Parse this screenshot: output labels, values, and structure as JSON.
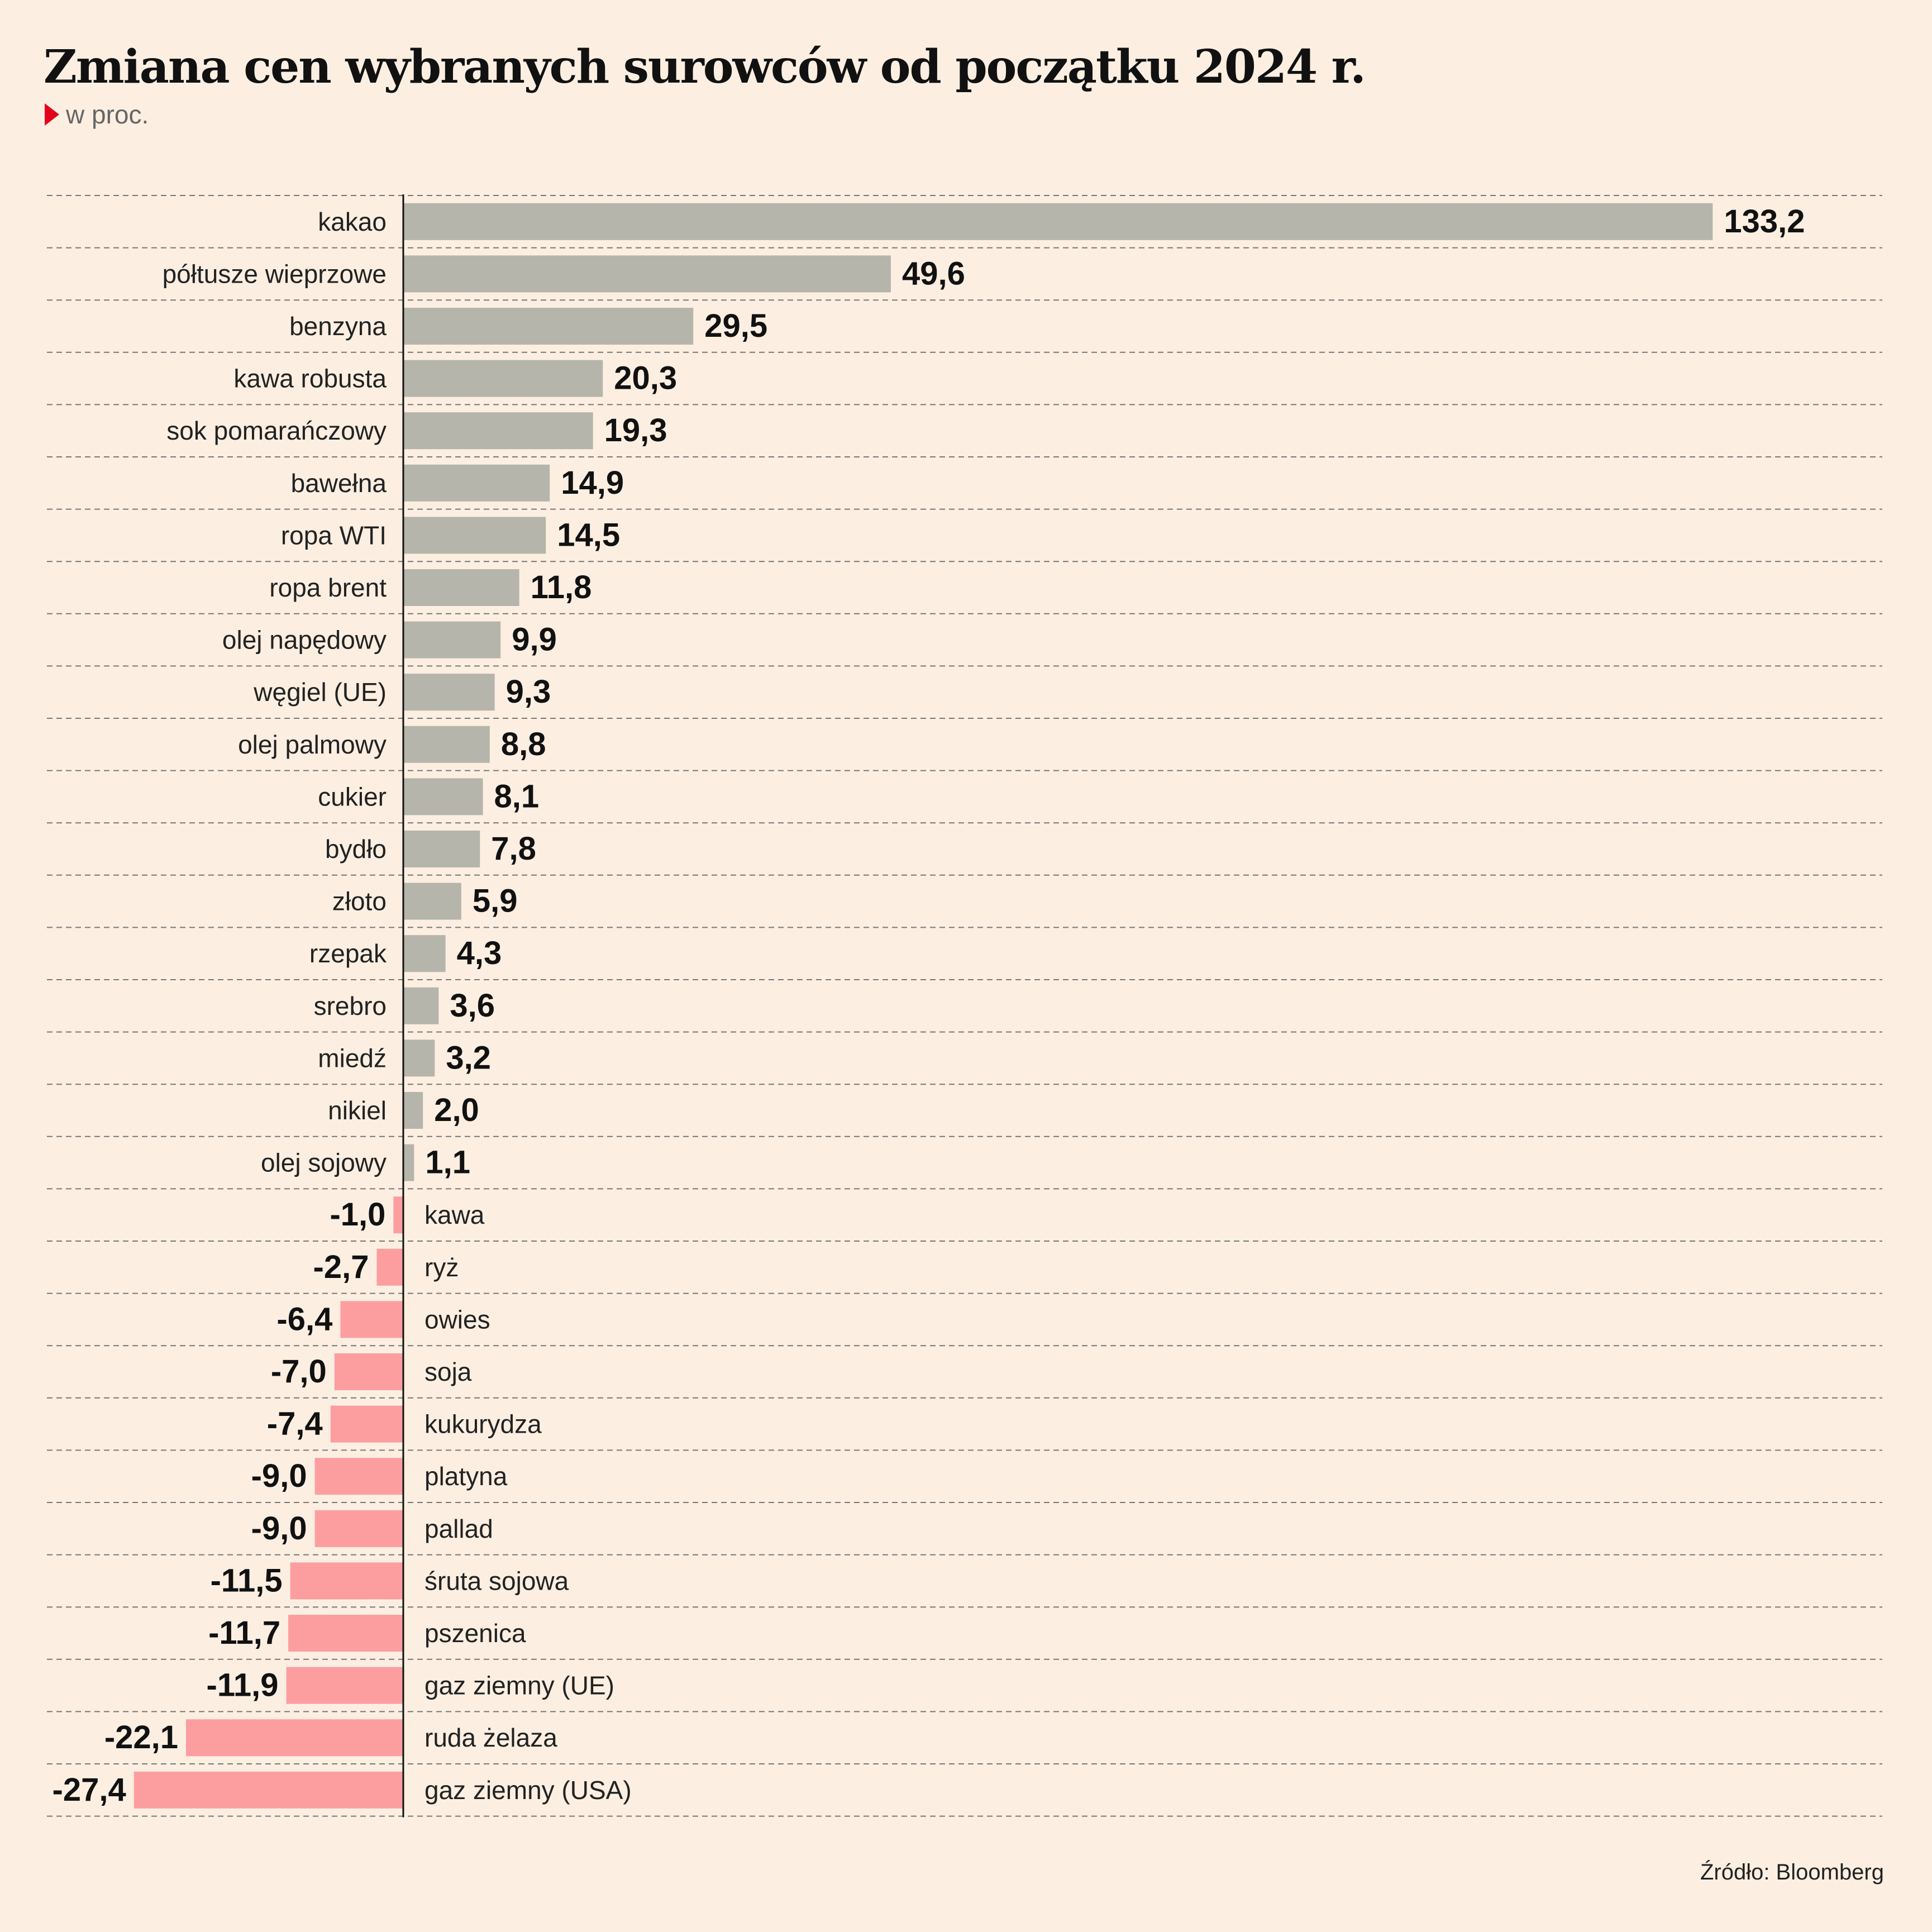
{
  "header": {
    "title": "Zmiana cen wybranych surowców od początku 2024 r.",
    "subtitle": "w proc."
  },
  "footer": {
    "source": "Źródło: Bloomberg"
  },
  "colors": {
    "positive": "#b5b5ab",
    "negative": "#fc9ea0",
    "background": "#fcefe2"
  },
  "chart_data": {
    "type": "bar",
    "orientation": "horizontal",
    "title": "Zmiana cen wybranych surowców od początku 2024 r.",
    "subtitle": "w proc.",
    "categories": [
      "kakao",
      "półtusze wieprzowe",
      "benzyna",
      "kawa robusta",
      "sok pomarańczowy",
      "bawełna",
      "ropa WTI",
      "ropa brent",
      "olej napędowy",
      "węgiel (UE)",
      "olej palmowy",
      "cukier",
      "bydło",
      "złoto",
      "rzepak",
      "srebro",
      "miedź",
      "nikiel",
      "olej sojowy",
      "kawa",
      "ryż",
      "owies",
      "soja",
      "kukurydza",
      "platyna",
      "pallad",
      "śruta sojowa",
      "pszenica",
      "gaz ziemny (UE)",
      "ruda żelaza",
      "gaz ziemny (USA)"
    ],
    "values": [
      133.2,
      49.6,
      29.5,
      20.3,
      19.3,
      14.9,
      14.5,
      11.8,
      9.9,
      9.3,
      8.8,
      8.1,
      7.8,
      5.9,
      4.3,
      3.6,
      3.2,
      2.0,
      1.1,
      -1.0,
      -2.7,
      -6.4,
      -7.0,
      -7.4,
      -9.0,
      -9.0,
      -11.5,
      -11.7,
      -11.9,
      -22.1,
      -27.4
    ],
    "labels": [
      "133,2",
      "49,6",
      "29,5",
      "20,3",
      "19,3",
      "14,9",
      "14,5",
      "11,8",
      "9,9",
      "9,3",
      "8,8",
      "8,1",
      "7,8",
      "5,9",
      "4,3",
      "3,6",
      "3,2",
      "2,0",
      "1,1",
      "-1,0",
      "-2,7",
      "-6,4",
      "-7,0",
      "-7,4",
      "-9,0",
      "-9,0",
      "-11,5",
      "-11,7",
      "-11,9",
      "-22,1",
      "-27,4"
    ],
    "grid": "dashed horizontal separators"
  }
}
